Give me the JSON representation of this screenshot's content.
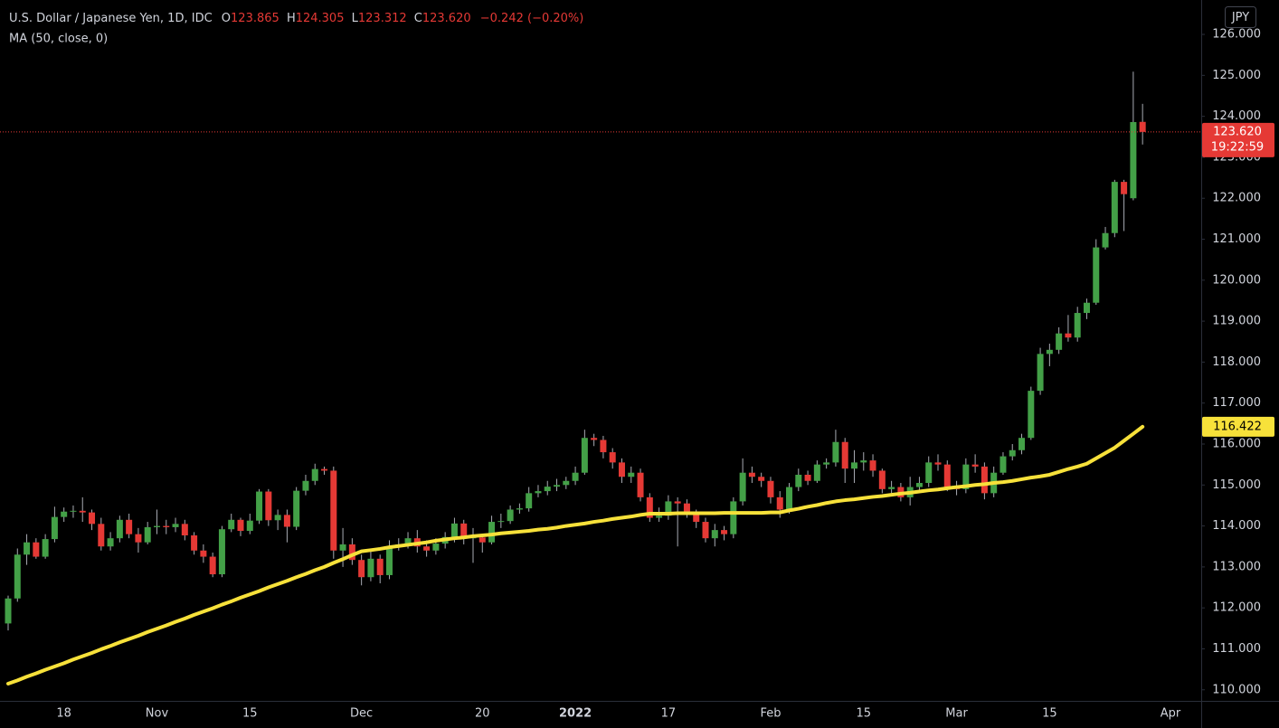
{
  "header": {
    "symbol": "U.S. Dollar / Japanese Yen, 1D, IDC",
    "o_label": "O",
    "o": "123.865",
    "h_label": "H",
    "h": "124.305",
    "l_label": "L",
    "l": "123.312",
    "c_label": "C",
    "c": "123.620",
    "change": "−0.242 (−0.20%)"
  },
  "chart_data": {
    "type": "candlestick",
    "currency": "JPY",
    "categories": [
      null,
      null,
      null,
      null,
      null,
      null,
      "18",
      null,
      null,
      null,
      null,
      null,
      null,
      null,
      null,
      null,
      "Nov",
      null,
      null,
      null,
      null,
      null,
      null,
      null,
      null,
      null,
      "15",
      null,
      null,
      null,
      null,
      null,
      null,
      null,
      null,
      null,
      null,
      null,
      "Dec",
      null,
      null,
      null,
      null,
      null,
      null,
      null,
      null,
      null,
      null,
      null,
      null,
      "20",
      null,
      null,
      null,
      null,
      null,
      null,
      null,
      null,
      null,
      "2022",
      null,
      null,
      null,
      null,
      null,
      null,
      null,
      null,
      null,
      "17",
      null,
      null,
      null,
      null,
      null,
      null,
      null,
      null,
      null,
      null,
      "Feb",
      null,
      null,
      null,
      null,
      null,
      null,
      null,
      null,
      null,
      "15",
      null,
      null,
      null,
      null,
      null,
      null,
      null,
      null,
      null,
      "Mar",
      null,
      null,
      null,
      null,
      null,
      null,
      null,
      null,
      null,
      "15",
      null,
      null,
      null,
      null,
      null,
      null,
      null,
      null,
      null,
      null,
      null,
      null,
      "Apr"
    ],
    "open": [
      111.62,
      112.23,
      113.3,
      113.6,
      113.25,
      113.68,
      114.22,
      114.35,
      114.37,
      114.33,
      114.05,
      113.5,
      113.7,
      114.15,
      113.8,
      113.6,
      113.97,
      114.0,
      113.97,
      114.05,
      113.77,
      113.4,
      113.25,
      112.82,
      113.92,
      114.15,
      113.88,
      114.13,
      114.84,
      114.14,
      114.27,
      113.98,
      114.86,
      115.1,
      115.39,
      115.35,
      113.4,
      113.55,
      113.17,
      112.75,
      113.2,
      112.8,
      113.5,
      113.55,
      113.7,
      113.5,
      113.4,
      113.57,
      113.73,
      114.06,
      113.7,
      113.72,
      113.6,
      114.1,
      114.12,
      114.4,
      114.43,
      114.8,
      114.85,
      114.96,
      115.0,
      115.1,
      115.3,
      116.15,
      116.1,
      115.8,
      115.55,
      115.2,
      115.3,
      114.7,
      114.2,
      114.25,
      114.6,
      114.55,
      114.3,
      114.1,
      113.7,
      113.9,
      113.8,
      114.6,
      115.3,
      115.2,
      115.1,
      114.7,
      114.4,
      114.95,
      115.25,
      115.1,
      115.5,
      115.55,
      116.05,
      115.4,
      115.55,
      115.6,
      115.35,
      114.9,
      114.95,
      114.7,
      114.95,
      115.05,
      115.55,
      115.5,
      114.95,
      114.9,
      115.5,
      115.45,
      114.8,
      115.3,
      115.7,
      115.85,
      116.15,
      117.3,
      118.2,
      118.3,
      118.7,
      118.6,
      119.2,
      119.45,
      120.8,
      121.15,
      122.4,
      122.0,
      123.865,
      null,
      null,
      null
    ],
    "high": [
      112.3,
      113.45,
      113.8,
      113.7,
      113.8,
      114.47,
      114.45,
      114.5,
      114.7,
      114.4,
      114.2,
      113.85,
      114.25,
      114.3,
      113.95,
      114.1,
      114.4,
      114.15,
      114.2,
      114.15,
      113.85,
      113.55,
      113.35,
      114.0,
      114.3,
      114.2,
      114.3,
      114.9,
      114.9,
      114.4,
      114.4,
      114.95,
      115.25,
      115.52,
      115.45,
      115.45,
      113.95,
      113.7,
      113.3,
      113.4,
      113.3,
      113.65,
      113.7,
      113.85,
      113.9,
      113.65,
      113.7,
      113.85,
      114.2,
      114.15,
      113.95,
      113.8,
      114.25,
      114.3,
      114.5,
      114.55,
      114.95,
      115.0,
      115.1,
      115.15,
      115.2,
      115.45,
      116.35,
      116.25,
      116.2,
      115.9,
      115.65,
      115.45,
      115.4,
      114.8,
      114.45,
      114.75,
      114.7,
      114.65,
      114.4,
      114.2,
      114.05,
      114.0,
      114.7,
      115.65,
      115.45,
      115.3,
      115.2,
      114.85,
      115.05,
      115.4,
      115.35,
      115.6,
      115.65,
      116.35,
      116.15,
      115.85,
      115.8,
      115.75,
      115.4,
      115.1,
      115.05,
      115.2,
      115.2,
      115.7,
      115.75,
      115.6,
      115.1,
      115.65,
      115.75,
      115.55,
      115.45,
      115.8,
      116.0,
      116.25,
      117.4,
      118.35,
      118.45,
      118.85,
      119.15,
      119.35,
      119.55,
      121.0,
      121.3,
      122.45,
      122.45,
      125.09,
      124.305,
      null,
      null,
      null
    ],
    "low": [
      111.45,
      112.15,
      113.05,
      113.2,
      113.2,
      113.6,
      114.1,
      114.2,
      114.1,
      113.9,
      113.4,
      113.4,
      113.6,
      113.7,
      113.35,
      113.55,
      113.8,
      113.8,
      113.85,
      113.65,
      113.3,
      113.1,
      112.75,
      112.75,
      113.85,
      113.75,
      113.8,
      114.05,
      114.0,
      113.9,
      113.6,
      113.9,
      114.75,
      115.0,
      115.25,
      113.2,
      113.0,
      113.05,
      112.55,
      112.65,
      112.6,
      112.7,
      113.4,
      113.45,
      113.35,
      113.25,
      113.3,
      113.45,
      113.6,
      113.55,
      113.1,
      113.35,
      113.55,
      113.95,
      114.05,
      114.3,
      114.35,
      114.7,
      114.75,
      114.85,
      114.9,
      115.0,
      115.25,
      115.95,
      115.65,
      115.4,
      115.05,
      115.05,
      114.6,
      114.1,
      114.1,
      114.15,
      113.5,
      114.2,
      113.95,
      113.6,
      113.5,
      113.65,
      113.7,
      114.5,
      115.05,
      114.95,
      114.55,
      114.2,
      114.3,
      114.85,
      115.0,
      115.05,
      115.4,
      115.45,
      115.05,
      115.05,
      115.35,
      115.2,
      114.8,
      114.8,
      114.6,
      114.5,
      114.85,
      114.95,
      115.35,
      114.85,
      114.75,
      114.8,
      115.3,
      114.65,
      114.7,
      115.25,
      115.6,
      115.75,
      116.1,
      117.2,
      117.9,
      118.2,
      118.5,
      118.5,
      119.05,
      119.4,
      120.75,
      121.05,
      121.2,
      121.95,
      123.312,
      null,
      null,
      null
    ],
    "close": [
      112.23,
      113.3,
      113.6,
      113.25,
      113.68,
      114.22,
      114.35,
      114.37,
      114.33,
      114.05,
      113.5,
      113.7,
      114.15,
      113.8,
      113.6,
      113.97,
      114.0,
      113.97,
      114.05,
      113.77,
      113.4,
      113.25,
      112.82,
      113.92,
      114.15,
      113.88,
      114.13,
      114.84,
      114.14,
      114.27,
      113.98,
      114.86,
      115.1,
      115.39,
      115.35,
      113.4,
      113.55,
      113.17,
      112.75,
      113.2,
      112.8,
      113.5,
      113.55,
      113.7,
      113.5,
      113.4,
      113.57,
      113.73,
      114.06,
      113.7,
      113.72,
      113.6,
      114.1,
      114.12,
      114.4,
      114.43,
      114.8,
      114.85,
      114.96,
      115.0,
      115.1,
      115.3,
      116.15,
      116.1,
      115.8,
      115.55,
      115.2,
      115.3,
      114.7,
      114.2,
      114.25,
      114.6,
      114.55,
      114.3,
      114.1,
      113.7,
      113.9,
      113.8,
      114.6,
      115.3,
      115.2,
      115.1,
      114.7,
      114.4,
      114.95,
      115.25,
      115.1,
      115.5,
      115.55,
      116.05,
      115.4,
      115.55,
      115.6,
      115.35,
      114.9,
      114.95,
      114.7,
      114.95,
      115.05,
      115.55,
      115.5,
      114.95,
      114.9,
      115.5,
      115.45,
      114.8,
      115.3,
      115.7,
      115.85,
      116.15,
      117.3,
      118.2,
      118.3,
      118.7,
      118.6,
      119.2,
      119.45,
      120.8,
      121.15,
      122.4,
      122.1,
      123.86,
      123.62,
      null,
      null,
      null
    ],
    "up_color": "#43a047",
    "down_color": "#e53935",
    "wick_color": "#a8abb3",
    "moving_average": {
      "name": "MA (50, close, 0)",
      "color": "#f7e13a",
      "values": [
        110.15,
        110.23,
        110.32,
        110.4,
        110.49,
        110.57,
        110.65,
        110.74,
        110.82,
        110.9,
        110.99,
        111.07,
        111.16,
        111.24,
        111.32,
        111.41,
        111.49,
        111.57,
        111.66,
        111.74,
        111.83,
        111.91,
        111.99,
        112.08,
        112.16,
        112.25,
        112.33,
        112.41,
        112.5,
        112.58,
        112.66,
        112.75,
        112.83,
        112.92,
        113.0,
        113.1,
        113.19,
        113.29,
        113.38,
        113.41,
        113.44,
        113.48,
        113.51,
        113.54,
        113.57,
        113.6,
        113.64,
        113.67,
        113.7,
        113.72,
        113.75,
        113.77,
        113.79,
        113.82,
        113.84,
        113.86,
        113.88,
        113.91,
        113.93,
        113.96,
        114.0,
        114.03,
        114.06,
        114.1,
        114.13,
        114.17,
        114.2,
        114.23,
        114.27,
        114.3,
        114.3,
        114.3,
        114.31,
        114.31,
        114.31,
        114.31,
        114.31,
        114.32,
        114.32,
        114.32,
        114.32,
        114.32,
        114.33,
        114.33,
        114.38,
        114.42,
        114.47,
        114.51,
        114.56,
        114.6,
        114.63,
        114.65,
        114.68,
        114.71,
        114.73,
        114.76,
        114.79,
        114.81,
        114.84,
        114.87,
        114.89,
        114.92,
        114.95,
        114.97,
        115.0,
        115.02,
        115.05,
        115.07,
        115.1,
        115.14,
        115.18,
        115.21,
        115.25,
        115.32,
        115.39,
        115.45,
        115.52,
        115.65,
        115.78,
        115.91,
        116.08,
        116.25,
        116.422,
        null,
        null,
        null
      ]
    },
    "last_price": {
      "label": "123.620",
      "countdown": "19:22:59"
    },
    "ylim": [
      109.73,
      126.84
    ],
    "yticks": [
      {
        "value": 110,
        "label": "110.000"
      },
      {
        "value": 111,
        "label": "111.000"
      },
      {
        "value": 112,
        "label": "112.000"
      },
      {
        "value": 113,
        "label": "113.000"
      },
      {
        "value": 114,
        "label": "114.000"
      },
      {
        "value": 115,
        "label": "115.000"
      },
      {
        "value": 116,
        "label": "116.000"
      },
      {
        "value": 117,
        "label": "117.000"
      },
      {
        "value": 118,
        "label": "118.000"
      },
      {
        "value": 119,
        "label": "119.000"
      },
      {
        "value": 120,
        "label": "120.000"
      },
      {
        "value": 121,
        "label": "121.000"
      },
      {
        "value": 122,
        "label": "122.000"
      },
      {
        "value": 123,
        "label": "123.000"
      },
      {
        "value": 124,
        "label": "124.000"
      },
      {
        "value": 125,
        "label": "125.000"
      },
      {
        "value": 126,
        "label": "126.000"
      }
    ]
  }
}
